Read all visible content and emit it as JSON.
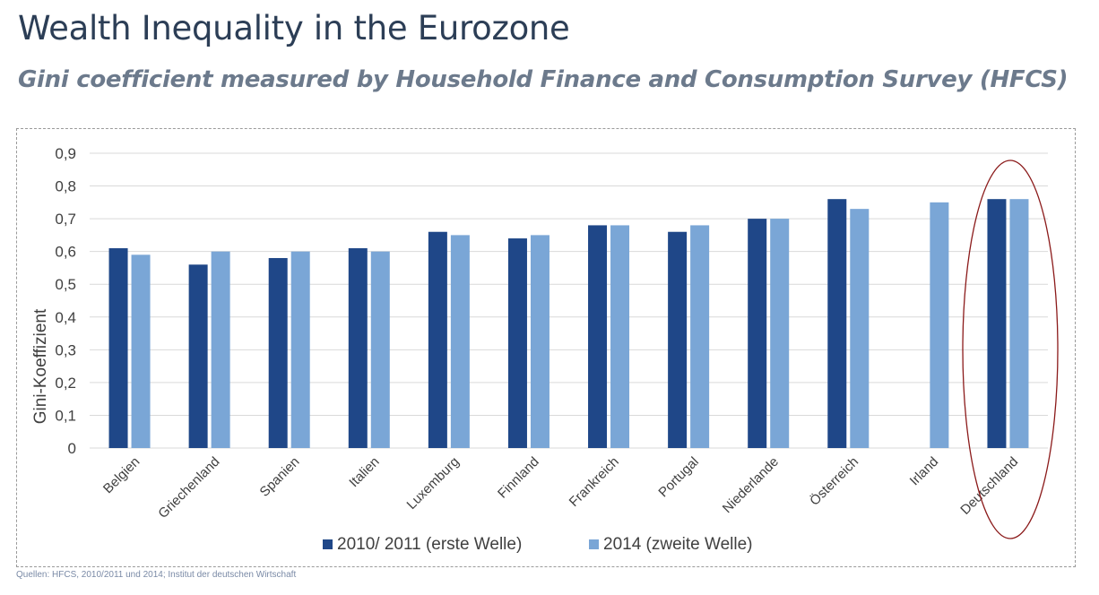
{
  "title": "Wealth Inequality in the Eurozone",
  "subtitle": "Gini coefficient measured by Household Finance and Consumption Survey (HFCS)",
  "source": "Quellen: HFCS, 2010/2011 und 2014; Institut der deutschen Wirtschaft",
  "colors": {
    "series1": "#1f4788",
    "series2": "#7aa6d6",
    "grid": "#d9d9d9",
    "highlight": "#8b1a1a"
  },
  "chart_data": {
    "type": "bar",
    "ylabel": "Gini-Koeffizient",
    "xlabel": "",
    "ylim": [
      0,
      0.9
    ],
    "yticks": [
      "0",
      "0,1",
      "0,2",
      "0,3",
      "0,4",
      "0,5",
      "0,6",
      "0,7",
      "0,8",
      "0,9"
    ],
    "grid": true,
    "legend": "bottom",
    "categories": [
      "Belgien",
      "Griechenland",
      "Spanien",
      "Italien",
      "Luxemburg",
      "Finnland",
      "Frankreich",
      "Portugal",
      "Niederlande",
      "Österreich",
      "Irland",
      "Deutschland"
    ],
    "series": [
      {
        "name": "2010/ 2011 (erste Welle)",
        "values": [
          0.61,
          0.56,
          0.58,
          0.61,
          0.66,
          0.64,
          0.68,
          0.66,
          0.7,
          0.76,
          null,
          0.76
        ]
      },
      {
        "name": "2014 (zweite Welle)",
        "values": [
          0.59,
          0.6,
          0.6,
          0.6,
          0.65,
          0.65,
          0.68,
          0.68,
          0.7,
          0.73,
          0.75,
          0.76
        ]
      }
    ],
    "highlighted_category": "Deutschland"
  }
}
